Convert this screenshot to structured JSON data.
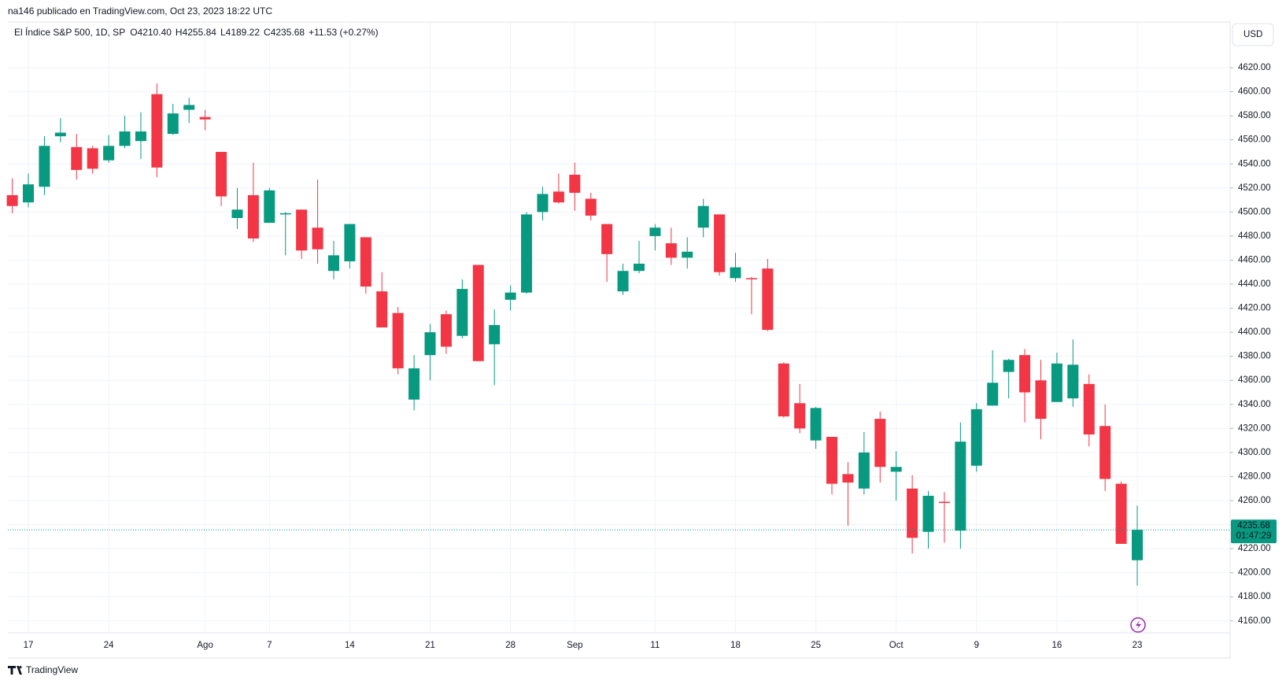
{
  "header": {
    "publisher": "na146 publicado en TradingView.com, Oct 23, 2023 18:22 UTC",
    "symbol": "El Índice S&P 500, 1D, SP",
    "ohlc_labels": [
      "O4210.40",
      "H4255.84",
      "L4189.22",
      "C4235.68"
    ],
    "change": "+11.53 (+0.27%)",
    "currency": "USD"
  },
  "footer": {
    "brand": "TradingView"
  },
  "chart_data": {
    "type": "candlestick",
    "categories": [
      null,
      "17",
      null,
      null,
      null,
      null,
      "24",
      null,
      null,
      null,
      null,
      null,
      "Ago",
      null,
      null,
      null,
      "7",
      null,
      null,
      null,
      null,
      "14",
      null,
      null,
      null,
      null,
      "21",
      null,
      null,
      null,
      null,
      "28",
      null,
      null,
      null,
      "Sep",
      null,
      null,
      null,
      null,
      "11",
      null,
      null,
      null,
      null,
      "18",
      null,
      null,
      null,
      null,
      "25",
      null,
      null,
      null,
      null,
      "Oct",
      null,
      null,
      null,
      null,
      "9",
      null,
      null,
      null,
      null,
      "16",
      null,
      null,
      null,
      null,
      "23"
    ],
    "open": [
      4514,
      4508,
      4521,
      4563,
      4554,
      4553,
      4543,
      4555,
      4559,
      4598,
      4565,
      4585,
      4579,
      4550,
      4495,
      4514,
      4491,
      4498,
      4502,
      4487,
      4451,
      4459,
      4479,
      4434,
      4416,
      4344,
      4381,
      4415,
      4397,
      4456,
      4390,
      4427,
      4433,
      4500,
      4517,
      4531,
      4511,
      4490,
      4434,
      4451,
      4480,
      4474,
      4462,
      4487,
      4498,
      4445,
      4445,
      4453,
      4374,
      4341,
      4310,
      4313,
      4282,
      4270,
      4328,
      4284,
      4270,
      4234,
      4259,
      4235,
      4289,
      4339,
      4367,
      4381,
      4360,
      4342,
      4345,
      4357,
      4322,
      4274,
      4210.4
    ],
    "high": [
      4528,
      4532,
      4563,
      4578,
      4565,
      4555,
      4564,
      4580,
      4583,
      4607,
      4590,
      4595,
      4585,
      4550,
      4520,
      4541,
      4520,
      4500,
      4502,
      4527,
      4476,
      4490,
      4479,
      4450,
      4421,
      4381,
      4407,
      4418,
      4444,
      4456,
      4419,
      4439,
      4500,
      4521,
      4532,
      4541,
      4516,
      4490,
      4457,
      4476,
      4490,
      4487,
      4479,
      4511,
      4498,
      4466,
      4446,
      4461,
      4375,
      4357,
      4338,
      4313,
      4292,
      4317,
      4334,
      4301,
      4281,
      4268,
      4267,
      4325,
      4341,
      4385,
      4378,
      4386,
      4377,
      4383,
      4394,
      4365,
      4340,
      4276,
      4255.84
    ],
    "low": [
      4499,
      4504,
      4514,
      4558,
      4527,
      4532,
      4541,
      4553,
      4544,
      4529,
      4564,
      4574,
      4568,
      4505,
      4486,
      4475,
      4491,
      4464,
      4461,
      4457,
      4444,
      4453,
      4432,
      4404,
      4365,
      4335,
      4360,
      4382,
      4395,
      4376,
      4356,
      4418,
      4432,
      4493,
      4507,
      4501,
      4493,
      4442,
      4431,
      4449,
      4468,
      4456,
      4453,
      4479,
      4447,
      4442,
      4415,
      4401,
      4329,
      4316,
      4303,
      4265,
      4239,
      4265,
      4275,
      4260,
      4216,
      4220,
      4225,
      4220,
      4284,
      4339,
      4345,
      4325,
      4311,
      4342,
      4338,
      4305,
      4268,
      4224,
      4189.22
    ],
    "close": [
      4505,
      4523,
      4555,
      4566,
      4535,
      4536,
      4555,
      4567,
      4567,
      4537,
      4582,
      4589,
      4577,
      4513,
      4502,
      4478,
      4518,
      4499,
      4468,
      4469,
      4464,
      4490,
      4438,
      4404,
      4370,
      4370,
      4400,
      4388,
      4436,
      4376,
      4406,
      4433,
      4498,
      4515,
      4508,
      4516,
      4497,
      4465,
      4451,
      4457,
      4487,
      4462,
      4467,
      4505,
      4450,
      4454,
      4444,
      4402,
      4330,
      4320,
      4337,
      4274,
      4275,
      4300,
      4288,
      4288,
      4229,
      4264,
      4258,
      4309,
      4336,
      4358,
      4377,
      4350,
      4328,
      4374,
      4373,
      4315,
      4278,
      4224,
      4235.68
    ],
    "up_color": "#089981",
    "down_color": "#f23645",
    "ylim": [
      4150,
      4658
    ],
    "yticks": [
      {
        "value": 4160,
        "label": "4160.00"
      },
      {
        "value": 4180,
        "label": "4180.00"
      },
      {
        "value": 4200,
        "label": "4200.00"
      },
      {
        "value": 4220,
        "label": "4220.00"
      },
      {
        "value": 4240,
        "label": "4240.00"
      },
      {
        "value": 4260,
        "label": "4260.00"
      },
      {
        "value": 4280,
        "label": "4280.00"
      },
      {
        "value": 4300,
        "label": "4300.00"
      },
      {
        "value": 4320,
        "label": "4320.00"
      },
      {
        "value": 4340,
        "label": "4340.00"
      },
      {
        "value": 4360,
        "label": "4360.00"
      },
      {
        "value": 4380,
        "label": "4380.00"
      },
      {
        "value": 4400,
        "label": "4400.00"
      },
      {
        "value": 4420,
        "label": "4420.00"
      },
      {
        "value": 4440,
        "label": "4440.00"
      },
      {
        "value": 4460,
        "label": "4460.00"
      },
      {
        "value": 4480,
        "label": "4480.00"
      },
      {
        "value": 4500,
        "label": "4500.00"
      },
      {
        "value": 4520,
        "label": "4520.00"
      },
      {
        "value": 4540,
        "label": "4540.00"
      },
      {
        "value": 4560,
        "label": "4560.00"
      },
      {
        "value": 4580,
        "label": "4580.00"
      },
      {
        "value": 4600,
        "label": "4600.00"
      },
      {
        "value": 4620,
        "label": "4620.00"
      }
    ],
    "last_price": {
      "value": 4235.68,
      "label": "4235.68"
    },
    "countdown": "01:47:29",
    "grid": true
  }
}
